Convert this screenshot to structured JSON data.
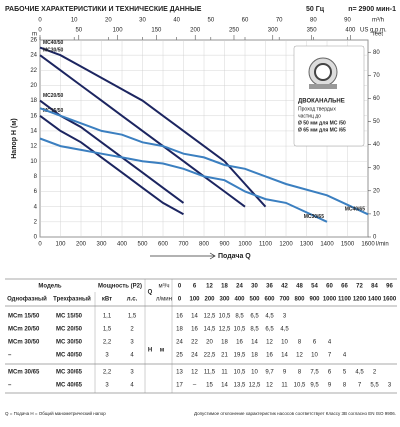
{
  "header": {
    "title": "РАБОЧИЕ ХАРАКТЕРИСТИКИ И ТЕХНИЧЕСКИЕ ДАННЫЕ",
    "frequency": "50 Гц",
    "speed": "n= 2900 мин-1"
  },
  "chart_data": {
    "type": "line",
    "x_label": "Подача Q",
    "y_label": "Напор H (м)",
    "x_unit": "l/min",
    "x2_unit": "m³/h",
    "x3_unit": "US g.p.m.",
    "y_unit": "m",
    "y2_unit": "feet",
    "xlim": [
      0,
      1600
    ],
    "xticks": [
      0,
      100,
      200,
      300,
      400,
      500,
      600,
      700,
      800,
      900,
      1000,
      1100,
      1200,
      1300,
      1400,
      1500,
      1600
    ],
    "x2lim": [
      0,
      96
    ],
    "x2ticks": [
      0,
      10,
      20,
      30,
      40,
      50,
      60,
      70,
      80,
      90
    ],
    "x3lim": [
      0,
      422.7
    ],
    "x3ticks": [
      0,
      50,
      100,
      150,
      200,
      250,
      300,
      350,
      400
    ],
    "ylim": [
      0,
      26
    ],
    "yticks": [
      0,
      2,
      4,
      6,
      8,
      10,
      12,
      14,
      16,
      18,
      20,
      22,
      24,
      26
    ],
    "y2lim": [
      0,
      85.3
    ],
    "y2ticks": [
      0,
      10,
      20,
      30,
      40,
      50,
      60,
      70,
      80
    ],
    "grid": true,
    "series": [
      {
        "name": "MC40/50",
        "color": "#1c2560",
        "x": [
          0,
          100,
          200,
          300,
          400,
          500,
          600,
          700,
          800,
          900,
          1000,
          1100
        ],
        "values": [
          25,
          24,
          22.5,
          21,
          19.5,
          18,
          16,
          14,
          12,
          10,
          7,
          4
        ]
      },
      {
        "name": "MC30/50",
        "color": "#1c2560",
        "x": [
          0,
          100,
          200,
          300,
          400,
          500,
          600,
          700,
          800,
          900,
          1000
        ],
        "values": [
          24,
          22,
          20,
          18,
          16,
          14,
          12,
          10,
          8,
          6,
          4
        ]
      },
      {
        "name": "MC20/50",
        "color": "#1c2560",
        "x": [
          0,
          100,
          200,
          300,
          400,
          500,
          600,
          700
        ],
        "values": [
          18,
          16,
          14.5,
          12.5,
          10.5,
          8.5,
          6.5,
          4.5
        ]
      },
      {
        "name": "MC15/50",
        "color": "#1c2560",
        "x": [
          0,
          100,
          200,
          300,
          400,
          500,
          600,
          700
        ],
        "values": [
          16,
          14,
          12.5,
          10.5,
          8.5,
          6.5,
          4.5,
          3
        ]
      },
      {
        "name": "MC40/65",
        "color": "#3b7fc0",
        "x": [
          0,
          200,
          300,
          400,
          500,
          600,
          700,
          800,
          900,
          1000,
          1100,
          1200,
          1400,
          1600
        ],
        "values": [
          17,
          15,
          14,
          13.5,
          12.5,
          12,
          11,
          10.5,
          9.5,
          9,
          8,
          7,
          5.5,
          3
        ]
      },
      {
        "name": "MC30/65",
        "color": "#3b7fc0",
        "x": [
          0,
          100,
          200,
          300,
          400,
          500,
          600,
          700,
          800,
          900,
          1000,
          1100,
          1200,
          1400
        ],
        "values": [
          13,
          12,
          11.5,
          11,
          10.5,
          10,
          9.7,
          9,
          8,
          7.5,
          6,
          5,
          4.5,
          2
        ]
      }
    ]
  },
  "note": {
    "title": "ДВОКАНАЛЬНЕ",
    "lines": [
      "Проход твердых",
      "частиц до",
      "Ø 50 мм для МС /50",
      "Ø 65 мм для МС /65"
    ]
  },
  "table": {
    "model_label": "Модель",
    "single_phase": "Однофазный",
    "three_phase": "Трехфазный",
    "power_label": "Мощность (P2)",
    "kw": "кВт",
    "hp": "л.с.",
    "q_label": "Q",
    "q_unit1": "м³/ч",
    "q_unit2": "л/мин",
    "h_label": "H",
    "h_unit": "м",
    "q_m3h": [
      "0",
      "6",
      "12",
      "18",
      "24",
      "30",
      "36",
      "42",
      "48",
      "54",
      "60",
      "66",
      "72",
      "84",
      "96"
    ],
    "q_lmin": [
      "0",
      "100",
      "200",
      "300",
      "400",
      "500",
      "600",
      "700",
      "800",
      "900",
      "1000",
      "1100",
      "1200",
      "1400",
      "1600"
    ],
    "rows": [
      {
        "single": "MCm 15/50",
        "three": "MC 15/50",
        "kw": "1,1",
        "hp": "1,5",
        "h": [
          "16",
          "14",
          "12,5",
          "10,5",
          "8,5",
          "6,5",
          "4,5",
          "3"
        ]
      },
      {
        "single": "MCm 20/50",
        "three": "MC 20/50",
        "kw": "1,5",
        "hp": "2",
        "h": [
          "18",
          "16",
          "14,5",
          "12,5",
          "10,5",
          "8,5",
          "6,5",
          "4,5"
        ]
      },
      {
        "single": "MCm 30/50",
        "three": "MC 30/50",
        "kw": "2,2",
        "hp": "3",
        "h": [
          "24",
          "22",
          "20",
          "18",
          "16",
          "14",
          "12",
          "10",
          "8",
          "6",
          "4"
        ]
      },
      {
        "single": "–",
        "three": "MC 40/50",
        "kw": "3",
        "hp": "4",
        "h": [
          "25",
          "24",
          "22,5",
          "21",
          "19,5",
          "18",
          "16",
          "14",
          "12",
          "10",
          "7",
          "4"
        ]
      },
      {
        "single": "MCm 30/65",
        "three": "MC 30/65",
        "kw": "2,2",
        "hp": "3",
        "h": [
          "13",
          "12",
          "11,5",
          "11",
          "10,5",
          "10",
          "9,7",
          "9",
          "8",
          "7,5",
          "6",
          "5",
          "4,5",
          "2"
        ]
      },
      {
        "single": "–",
        "three": "MC 40/65",
        "kw": "3",
        "hp": "4",
        "h": [
          "17",
          "–",
          "15",
          "14",
          "13,5",
          "12,5",
          "12",
          "11",
          "10,5",
          "9,5",
          "9",
          "8",
          "7",
          "5,5",
          "3"
        ]
      }
    ]
  },
  "footer": {
    "left": "Q = Подача   H = Общий манометрический напор",
    "right": "Допустимое отклонение характеристик насосов соответствует Классу 3В согласно EN ISO 9906."
  }
}
